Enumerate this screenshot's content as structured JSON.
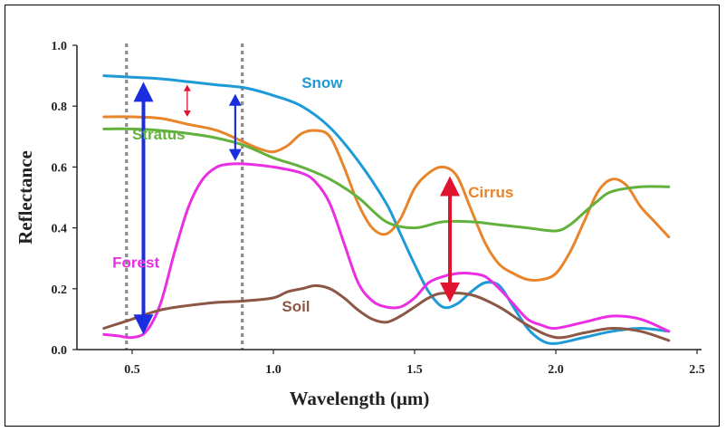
{
  "chart_data": {
    "type": "line",
    "xlabel": "Wavelength (μm)",
    "ylabel": "Reflectance",
    "xlim": [
      0.35,
      2.5
    ],
    "ylim": [
      0,
      1.0
    ],
    "xticks": [
      "0.5",
      "1.0",
      "1.5",
      "2.0",
      "2.5"
    ],
    "yticks": [
      "0.0",
      "0.2",
      "0.4",
      "0.6",
      "0.8",
      "1.0"
    ],
    "grid": false,
    "reference_lines_x": [
      0.48,
      0.89
    ],
    "series": [
      {
        "name": "Snow",
        "color": "#1e9ad6",
        "label_at": [
          1.1,
          0.86
        ],
        "x": [
          0.4,
          0.5,
          0.6,
          0.7,
          0.8,
          0.9,
          1.0,
          1.1,
          1.2,
          1.3,
          1.4,
          1.45,
          1.5,
          1.55,
          1.6,
          1.65,
          1.7,
          1.75,
          1.8,
          1.85,
          1.9,
          1.95,
          2.0,
          2.1,
          2.2,
          2.3,
          2.4
        ],
        "y": [
          0.9,
          0.895,
          0.89,
          0.88,
          0.87,
          0.86,
          0.835,
          0.8,
          0.73,
          0.62,
          0.48,
          0.38,
          0.28,
          0.19,
          0.14,
          0.15,
          0.19,
          0.22,
          0.21,
          0.14,
          0.07,
          0.03,
          0.02,
          0.04,
          0.06,
          0.07,
          0.06
        ]
      },
      {
        "name": "Cirrus",
        "color": "#e8842a",
        "label_at": [
          1.69,
          0.5
        ],
        "x": [
          0.4,
          0.5,
          0.6,
          0.7,
          0.8,
          0.9,
          0.95,
          1.0,
          1.05,
          1.1,
          1.15,
          1.2,
          1.25,
          1.3,
          1.35,
          1.4,
          1.45,
          1.5,
          1.55,
          1.6,
          1.65,
          1.7,
          1.75,
          1.8,
          1.85,
          1.9,
          1.95,
          2.0,
          2.05,
          2.1,
          2.15,
          2.2,
          2.25,
          2.3,
          2.35,
          2.4
        ],
        "y": [
          0.765,
          0.765,
          0.76,
          0.74,
          0.72,
          0.68,
          0.66,
          0.65,
          0.67,
          0.71,
          0.72,
          0.7,
          0.6,
          0.48,
          0.4,
          0.38,
          0.43,
          0.53,
          0.58,
          0.6,
          0.57,
          0.46,
          0.35,
          0.28,
          0.25,
          0.23,
          0.23,
          0.25,
          0.32,
          0.42,
          0.52,
          0.56,
          0.54,
          0.47,
          0.42,
          0.37
        ]
      },
      {
        "name": "Stratus",
        "color": "#62b13d",
        "label_at": [
          0.5,
          0.69
        ],
        "x": [
          0.4,
          0.5,
          0.6,
          0.7,
          0.8,
          0.9,
          1.0,
          1.1,
          1.2,
          1.3,
          1.4,
          1.5,
          1.6,
          1.7,
          1.8,
          1.9,
          2.0,
          2.05,
          2.1,
          2.15,
          2.2,
          2.3,
          2.4
        ],
        "y": [
          0.725,
          0.725,
          0.72,
          0.71,
          0.695,
          0.67,
          0.63,
          0.6,
          0.56,
          0.5,
          0.42,
          0.4,
          0.42,
          0.42,
          0.41,
          0.4,
          0.39,
          0.41,
          0.45,
          0.49,
          0.52,
          0.535,
          0.535
        ]
      },
      {
        "name": "Forest",
        "color": "#ea2ee3",
        "label_at": [
          0.43,
          0.27
        ],
        "x": [
          0.4,
          0.45,
          0.5,
          0.55,
          0.6,
          0.65,
          0.7,
          0.75,
          0.8,
          0.85,
          0.9,
          1.0,
          1.1,
          1.15,
          1.2,
          1.25,
          1.3,
          1.35,
          1.4,
          1.45,
          1.5,
          1.55,
          1.6,
          1.65,
          1.7,
          1.75,
          1.8,
          1.85,
          1.9,
          1.95,
          2.0,
          2.1,
          2.2,
          2.3,
          2.4
        ],
        "y": [
          0.05,
          0.045,
          0.04,
          0.06,
          0.15,
          0.32,
          0.47,
          0.56,
          0.6,
          0.61,
          0.61,
          0.6,
          0.58,
          0.55,
          0.48,
          0.35,
          0.22,
          0.16,
          0.14,
          0.14,
          0.17,
          0.22,
          0.24,
          0.25,
          0.25,
          0.24,
          0.2,
          0.15,
          0.1,
          0.08,
          0.07,
          0.09,
          0.11,
          0.1,
          0.06
        ]
      },
      {
        "name": "Soil",
        "color": "#8c5745",
        "label_at": [
          1.03,
          0.125
        ],
        "x": [
          0.4,
          0.5,
          0.6,
          0.7,
          0.8,
          0.9,
          1.0,
          1.05,
          1.1,
          1.15,
          1.2,
          1.25,
          1.3,
          1.35,
          1.4,
          1.45,
          1.5,
          1.55,
          1.6,
          1.7,
          1.8,
          1.9,
          2.0,
          2.1,
          2.2,
          2.3,
          2.4
        ],
        "y": [
          0.07,
          0.1,
          0.13,
          0.145,
          0.155,
          0.16,
          0.17,
          0.19,
          0.2,
          0.21,
          0.2,
          0.17,
          0.13,
          0.1,
          0.09,
          0.11,
          0.14,
          0.17,
          0.185,
          0.18,
          0.14,
          0.08,
          0.04,
          0.055,
          0.07,
          0.06,
          0.03
        ]
      }
    ],
    "annotations": [
      {
        "kind": "double-arrow",
        "color": "#1a2ee0",
        "x": 0.54,
        "y1": 0.05,
        "y2": 0.88,
        "weight": "thick"
      },
      {
        "kind": "double-arrow",
        "color": "#1a2ee0",
        "x": 0.865,
        "y1": 0.62,
        "y2": 0.84,
        "weight": "medium"
      },
      {
        "kind": "double-arrow",
        "color": "#e0142e",
        "x": 0.695,
        "y1": 0.765,
        "y2": 0.87,
        "weight": "thin"
      },
      {
        "kind": "double-arrow",
        "color": "#e0142e",
        "x": 1.625,
        "y1": 0.155,
        "y2": 0.57,
        "weight": "thick"
      }
    ]
  }
}
